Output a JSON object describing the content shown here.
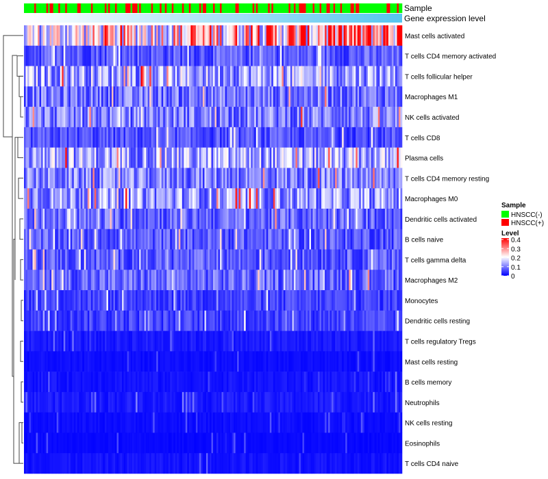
{
  "chart_data": {
    "type": "heatmap",
    "title": "",
    "n_columns": 220,
    "annotations": [
      {
        "name": "Sample",
        "label": "Sample"
      },
      {
        "name": "Gene expression level",
        "label": "Gene expression level",
        "colors": [
          "#ffffff",
          "#56c5ef"
        ]
      }
    ],
    "sample_red_fraction": 0.3,
    "rows": [
      {
        "label": "Mast cells activated",
        "mean": 0.24,
        "trend": 0.12
      },
      {
        "label": "T cells CD4 memory activated",
        "mean": 0.07,
        "trend": 0
      },
      {
        "label": "T cells follicular helper",
        "mean": 0.13,
        "trend": 0
      },
      {
        "label": "Macrophages M1",
        "mean": 0.09,
        "trend": 0
      },
      {
        "label": "NK cells activated",
        "mean": 0.1,
        "trend": 0
      },
      {
        "label": "T cells CD8",
        "mean": 0.06,
        "trend": 0
      },
      {
        "label": "Plasma cells",
        "mean": 0.13,
        "trend": 0
      },
      {
        "label": "T cells CD4 memory resting",
        "mean": 0.1,
        "trend": 0
      },
      {
        "label": "Macrophages M0",
        "mean": 0.12,
        "trend": 0
      },
      {
        "label": "Dendritic cells activated",
        "mean": 0.08,
        "trend": 0
      },
      {
        "label": "B cells naive",
        "mean": 0.07,
        "trend": 0
      },
      {
        "label": "T cells gamma delta",
        "mean": 0.07,
        "trend": 0
      },
      {
        "label": "Macrophages M2",
        "mean": 0.08,
        "trend": 0
      },
      {
        "label": "Monocytes",
        "mean": 0.05,
        "trend": 0
      },
      {
        "label": "Dendritic cells resting",
        "mean": 0.05,
        "trend": 0
      },
      {
        "label": "T cells regulatory  Tregs",
        "mean": 0.02,
        "trend": 0
      },
      {
        "label": "Mast cells resting",
        "mean": 0.01,
        "trend": 0
      },
      {
        "label": "B cells memory",
        "mean": 0.015,
        "trend": 0
      },
      {
        "label": "Neutrophils",
        "mean": 0.02,
        "trend": 0
      },
      {
        "label": "NK cells resting",
        "mean": 0.01,
        "trend": 0
      },
      {
        "label": "Eosinophils",
        "mean": 0.006,
        "trend": 0
      },
      {
        "label": "T cells CD4 naive",
        "mean": 0.015,
        "trend": 0
      }
    ],
    "color_scale": {
      "min": 0,
      "mid": 0.2,
      "max": 0.4,
      "colors": [
        "#0000ff",
        "#ffffff",
        "#ff0000"
      ]
    },
    "legend": {
      "position": "right",
      "sample": {
        "title": "Sample",
        "items": [
          {
            "label": "HNSCC(-)",
            "color": "#00ff00"
          },
          {
            "label": "HNSCC(+)",
            "color": "#ff0000"
          }
        ]
      },
      "level": {
        "title": "Level",
        "ticks": [
          "0.4",
          "0.3",
          "0.2",
          "0.1",
          "0"
        ],
        "tick_values": [
          0.4,
          0.3,
          0.2,
          0.1,
          0
        ]
      }
    }
  }
}
